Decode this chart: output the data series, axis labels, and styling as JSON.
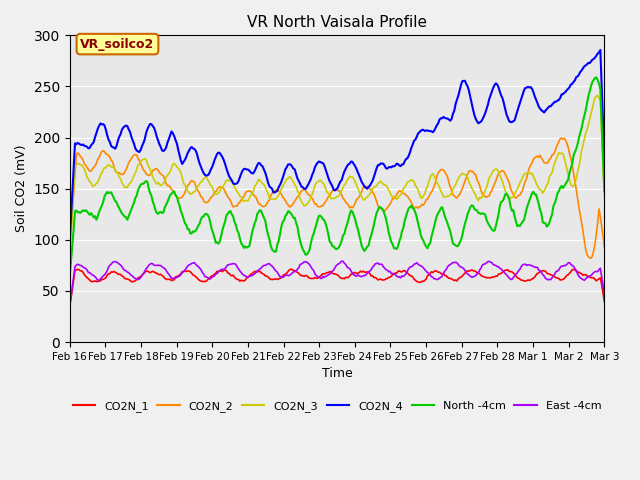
{
  "title": "VR North Vaisala Profile",
  "xlabel": "Time",
  "ylabel": "Soil CO2 (mV)",
  "ylim": [
    0,
    300
  ],
  "yticks": [
    0,
    50,
    100,
    150,
    200,
    250,
    300
  ],
  "legend_box_label": "VR_soilco2",
  "legend_box_color": "#ffff99",
  "legend_box_border": "#cc6600",
  "xtick_labels": [
    "Feb 16",
    "Feb 17",
    "Feb 18",
    "Feb 19",
    "Feb 20",
    "Feb 21",
    "Feb 22",
    "Feb 23",
    "Feb 24",
    "Feb 25",
    "Feb 26",
    "Feb 27",
    "Feb 28",
    "Mar 1",
    "Mar 2",
    "Mar 3"
  ],
  "xtick_positions": [
    0,
    1,
    2,
    3,
    4,
    5,
    6,
    7,
    8,
    9,
    10,
    11,
    12,
    13,
    14,
    15
  ],
  "series_names": [
    "CO2N_1",
    "CO2N_2",
    "CO2N_3",
    "CO2N_4",
    "North -4cm",
    "East -4cm"
  ],
  "series_colors": [
    "#ff0000",
    "#ff8800",
    "#cccc00",
    "#0000ff",
    "#00cc00",
    "#aa00ff"
  ],
  "series_lw": [
    1.2,
    1.2,
    1.2,
    1.5,
    1.5,
    1.2
  ]
}
